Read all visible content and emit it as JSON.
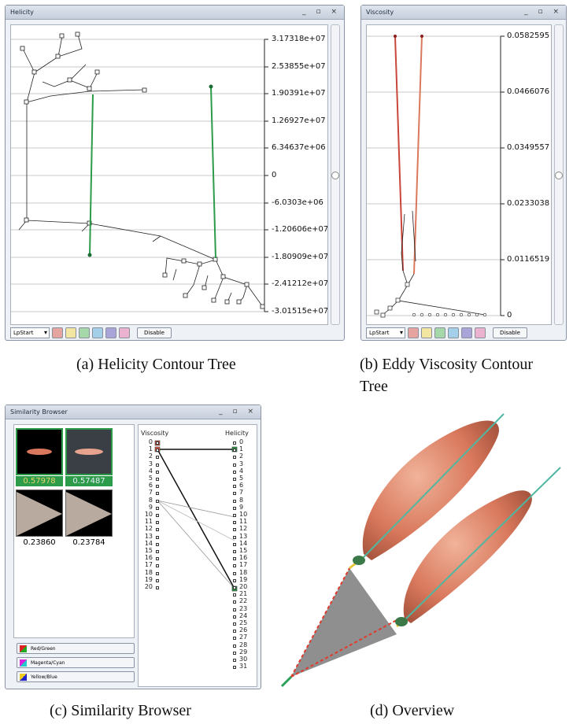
{
  "win_helicity": {
    "title": "Helicity",
    "axis": [
      "3.17318e+07",
      "2.53855e+07",
      "1.90391e+07",
      "1.26927e+07",
      "6.34637e+06",
      "0",
      "-6.0303e+06",
      "-1.20606e+07",
      "-1.80909e+07",
      "-2.41212e+07",
      "-3.01515e+07"
    ],
    "select": "LpStart",
    "button": "Disable"
  },
  "win_viscosity": {
    "title": "Viscosity",
    "axis": [
      "0.0582595",
      "0.0466076",
      "0.0349557",
      "0.0233038",
      "0.0116519",
      "0"
    ],
    "select": "LpStart",
    "button": "Disable"
  },
  "win_similarity": {
    "title": "Similarity Browser",
    "scores": [
      "0.57978",
      "0.57487",
      "0.23860",
      "0.23784"
    ],
    "left_header": "Viscosity",
    "right_header": "Helicity",
    "left_numbers": [
      "0",
      "1",
      "2",
      "3",
      "4",
      "5",
      "6",
      "7",
      "8",
      "9",
      "10",
      "11",
      "12",
      "13",
      "14",
      "15",
      "16",
      "17",
      "18",
      "19",
      "20"
    ],
    "right_numbers": [
      "0",
      "1",
      "2",
      "3",
      "4",
      "5",
      "6",
      "7",
      "8",
      "9",
      "10",
      "11",
      "12",
      "13",
      "14",
      "15",
      "16",
      "17",
      "18",
      "19",
      "20",
      "21",
      "22",
      "23",
      "24",
      "25",
      "26",
      "27",
      "28",
      "29",
      "30",
      "31"
    ],
    "color_buttons": [
      "Red/Green",
      "Magenta/Cyan",
      "Yellow/Blue"
    ]
  },
  "captions": {
    "a": "(a)  Helicity Contour Tree",
    "b1": "(b)  Eddy Viscosity Contour",
    "b2": "Tree",
    "c": "(c)  Similarity Browser",
    "d": "(d)  Overview"
  },
  "colors": {
    "swatches": [
      "#e5a4a0",
      "#f3e6a2",
      "#a6d7a8",
      "#a4cfe8",
      "#a9a5d8",
      "#ebb2cf"
    ],
    "selection_green": "#2c9b4a",
    "tube_orange": "#d9785c",
    "cone_gray": "#8f8f8f"
  }
}
